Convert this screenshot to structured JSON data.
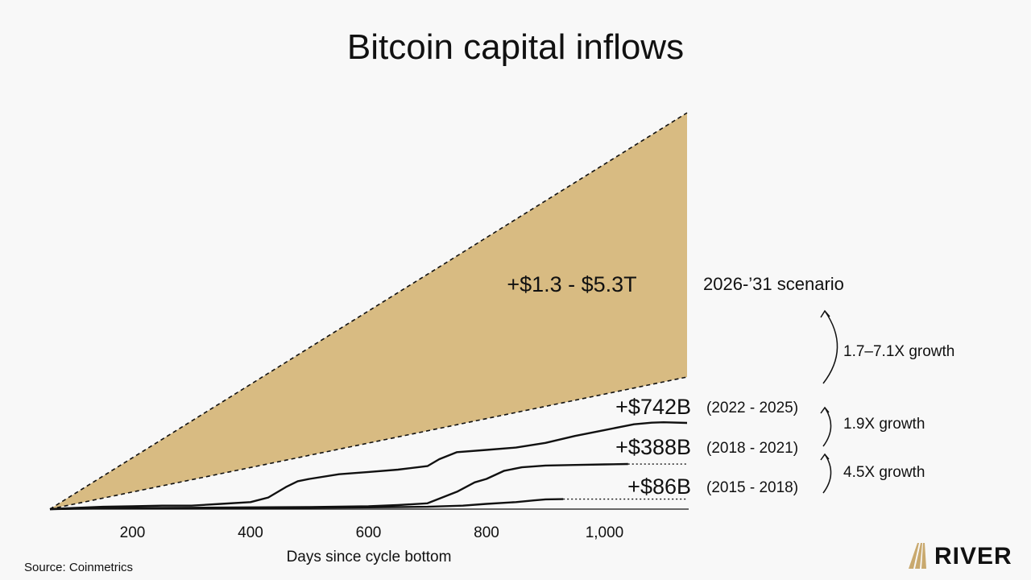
{
  "title": "Bitcoin capital inflows",
  "source": "Source: Coinmetrics",
  "logo": {
    "text": "RIVER",
    "color": "#c9a96e"
  },
  "colors": {
    "band": "#d8bb82",
    "line": "#111111",
    "background": "#f8f8f8"
  },
  "chart_data": {
    "type": "line",
    "title": "Bitcoin capital inflows",
    "xlabel": "Days since cycle bottom",
    "ylabel": "",
    "xlim": [
      60,
      1140
    ],
    "ylim": [
      0,
      5.5
    ],
    "x_ticks": [
      200,
      400,
      600,
      800,
      1000
    ],
    "x_tick_labels": [
      "200",
      "400",
      "600",
      "800",
      "1,000"
    ],
    "grid": false,
    "series": [
      {
        "name": "(2015 - 2018)",
        "label": "+$86B",
        "x": [
          60,
          100,
          200,
          300,
          400,
          500,
          600,
          700,
          760,
          800,
          850,
          880,
          900,
          930
        ],
        "y": [
          0,
          0.003,
          0.008,
          0.009,
          0.01,
          0.012,
          0.015,
          0.02,
          0.03,
          0.045,
          0.06,
          0.075,
          0.084,
          0.086
        ]
      },
      {
        "name": "(2018 - 2021)",
        "label": "+$388B",
        "x": [
          60,
          100,
          200,
          300,
          400,
          500,
          600,
          650,
          700,
          750,
          780,
          800,
          830,
          860,
          900,
          950,
          1000,
          1040
        ],
        "y": [
          0,
          0.005,
          0.01,
          0.012,
          0.015,
          0.018,
          0.025,
          0.035,
          0.05,
          0.15,
          0.23,
          0.26,
          0.33,
          0.36,
          0.375,
          0.38,
          0.385,
          0.388
        ]
      },
      {
        "name": "(2022 - 2025)",
        "label": "+$742B",
        "x": [
          60,
          100,
          150,
          200,
          250,
          300,
          350,
          400,
          430,
          460,
          480,
          500,
          550,
          600,
          650,
          700,
          720,
          750,
          800,
          850,
          900,
          950,
          1000,
          1050,
          1080,
          1100,
          1140
        ],
        "y": [
          0,
          0.01,
          0.02,
          0.025,
          0.03,
          0.03,
          0.045,
          0.06,
          0.1,
          0.19,
          0.24,
          0.26,
          0.3,
          0.32,
          0.34,
          0.37,
          0.43,
          0.49,
          0.51,
          0.53,
          0.57,
          0.63,
          0.68,
          0.73,
          0.745,
          0.75,
          0.742
        ]
      }
    ],
    "scenario": {
      "name": "2026-’31 scenario",
      "label": "+$1.3 - $5.3T",
      "x": [
        60,
        1140
      ],
      "lower": [
        0,
        1.3
      ],
      "upper": [
        0,
        5.3
      ]
    },
    "dotted_extensions": [
      {
        "series": "(2015 - 2018)",
        "from_x": 930,
        "to_x": 1140,
        "y": 0.086
      },
      {
        "series": "(2018 - 2021)",
        "from_x": 1040,
        "to_x": 1140,
        "y": 0.388
      }
    ],
    "growth_annotations": [
      {
        "text": "4.5X growth",
        "from": "(2015 - 2018)",
        "to": "(2018 - 2021)"
      },
      {
        "text": "1.9X growth",
        "from": "(2018 - 2021)",
        "to": "(2022 - 2025)"
      },
      {
        "text": "1.7–7.1X growth",
        "from": "(2022 - 2025)",
        "to": "2026-’31 scenario"
      }
    ]
  }
}
